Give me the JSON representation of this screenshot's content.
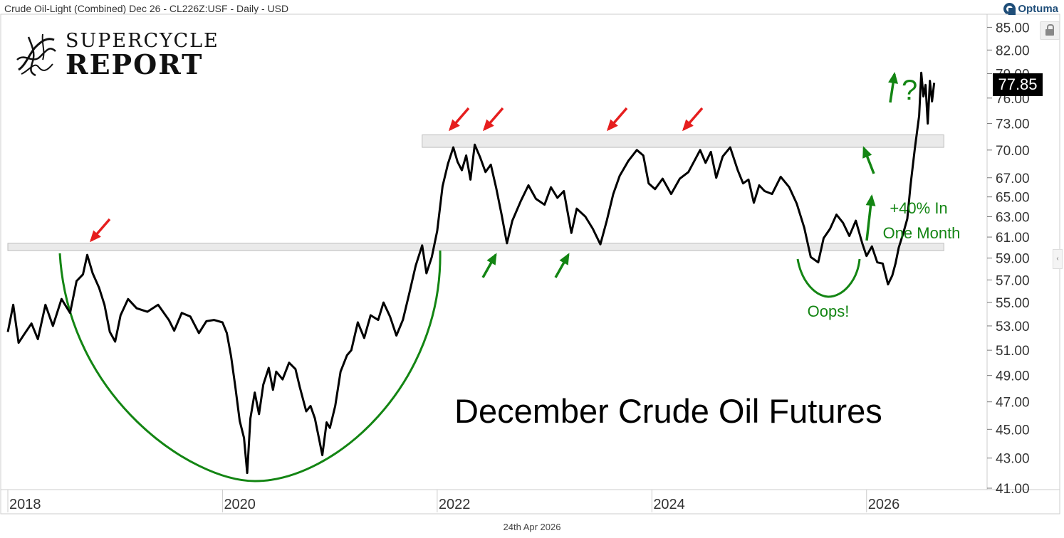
{
  "header": {
    "instrument": "Crude Oil-Light (Combined) Dec 26 - CL226Z:USF - Daily - USD",
    "brand": "Optuma",
    "lock_icon": "lock-icon",
    "scroll_icon": "chevron-left-icon"
  },
  "logo": {
    "line1": "SUPERCYCLE",
    "line2": "REPORT",
    "icon": "swirl-logo-icon"
  },
  "footer": {
    "date": "24th Apr 2026"
  },
  "price_tag": "77.85",
  "chart_data": {
    "type": "line",
    "title": "December Crude Oil Futures",
    "xlabel": "",
    "ylabel": "",
    "ylim": [
      41,
      86
    ],
    "xlim": [
      2017.98,
      2027.05
    ],
    "x_ticks": [
      2018,
      2020,
      2022,
      2024,
      2026
    ],
    "x_tick_labels": [
      "2018",
      "2020",
      "2022",
      "2024",
      "2026"
    ],
    "y_ticks": [
      41,
      43,
      45,
      47,
      49,
      51,
      53,
      55,
      57,
      59,
      61,
      63,
      65,
      67,
      70,
      73,
      76,
      79,
      82,
      85
    ],
    "y_tick_labels": [
      "41.00",
      "43.00",
      "45.00",
      "47.00",
      "49.00",
      "51.00",
      "53.00",
      "55.00",
      "57.00",
      "59.00",
      "61.00",
      "63.00",
      "65.00",
      "67.00",
      "70.00",
      "73.00",
      "76.00",
      "79.00",
      "82.00",
      "85.00"
    ],
    "grid": false,
    "series": [
      {
        "color": "#000000",
        "points": [
          [
            2018.0,
            52.5
          ],
          [
            2018.05,
            54.8
          ],
          [
            2018.1,
            51.6
          ],
          [
            2018.16,
            52.4
          ],
          [
            2018.22,
            53.2
          ],
          [
            2018.28,
            51.9
          ],
          [
            2018.35,
            54.8
          ],
          [
            2018.42,
            53.0
          ],
          [
            2018.5,
            55.3
          ],
          [
            2018.58,
            54.1
          ],
          [
            2018.64,
            56.9
          ],
          [
            2018.7,
            57.5
          ],
          [
            2018.74,
            59.3
          ],
          [
            2018.79,
            57.6
          ],
          [
            2018.85,
            56.3
          ],
          [
            2018.9,
            54.8
          ],
          [
            2018.95,
            52.5
          ],
          [
            2019.0,
            51.7
          ],
          [
            2019.05,
            53.9
          ],
          [
            2019.12,
            55.3
          ],
          [
            2019.2,
            54.5
          ],
          [
            2019.3,
            54.2
          ],
          [
            2019.4,
            54.8
          ],
          [
            2019.5,
            53.5
          ],
          [
            2019.55,
            52.6
          ],
          [
            2019.62,
            54.1
          ],
          [
            2019.7,
            53.8
          ],
          [
            2019.78,
            52.4
          ],
          [
            2019.85,
            53.4
          ],
          [
            2019.92,
            53.5
          ],
          [
            2020.0,
            53.3
          ],
          [
            2020.04,
            52.4
          ],
          [
            2020.08,
            50.5
          ],
          [
            2020.12,
            48.1
          ],
          [
            2020.16,
            45.6
          ],
          [
            2020.2,
            44.4
          ],
          [
            2020.23,
            42.0
          ],
          [
            2020.26,
            45.8
          ],
          [
            2020.3,
            47.7
          ],
          [
            2020.34,
            46.1
          ],
          [
            2020.38,
            48.3
          ],
          [
            2020.43,
            49.6
          ],
          [
            2020.47,
            47.9
          ],
          [
            2020.5,
            49.3
          ],
          [
            2020.56,
            48.7
          ],
          [
            2020.62,
            50.0
          ],
          [
            2020.68,
            49.5
          ],
          [
            2020.72,
            48.1
          ],
          [
            2020.78,
            46.3
          ],
          [
            2020.82,
            46.7
          ],
          [
            2020.86,
            45.8
          ],
          [
            2020.9,
            44.3
          ],
          [
            2020.93,
            43.2
          ],
          [
            2020.97,
            45.5
          ],
          [
            2021.0,
            45.1
          ],
          [
            2021.05,
            46.7
          ],
          [
            2021.1,
            49.3
          ],
          [
            2021.16,
            50.6
          ],
          [
            2021.2,
            51.0
          ],
          [
            2021.26,
            53.3
          ],
          [
            2021.32,
            52.0
          ],
          [
            2021.38,
            53.9
          ],
          [
            2021.45,
            53.5
          ],
          [
            2021.5,
            55.0
          ],
          [
            2021.56,
            53.8
          ],
          [
            2021.62,
            52.2
          ],
          [
            2021.68,
            53.5
          ],
          [
            2021.74,
            55.8
          ],
          [
            2021.8,
            58.3
          ],
          [
            2021.86,
            60.2
          ],
          [
            2021.9,
            57.6
          ],
          [
            2021.95,
            59.1
          ],
          [
            2022.0,
            61.6
          ],
          [
            2022.05,
            66.1
          ],
          [
            2022.1,
            68.5
          ],
          [
            2022.15,
            70.3
          ],
          [
            2022.19,
            68.7
          ],
          [
            2022.23,
            67.8
          ],
          [
            2022.27,
            69.4
          ],
          [
            2022.31,
            66.8
          ],
          [
            2022.35,
            70.6
          ],
          [
            2022.4,
            69.2
          ],
          [
            2022.45,
            67.6
          ],
          [
            2022.5,
            68.4
          ],
          [
            2022.55,
            65.9
          ],
          [
            2022.6,
            63.2
          ],
          [
            2022.65,
            60.4
          ],
          [
            2022.7,
            62.6
          ],
          [
            2022.78,
            64.6
          ],
          [
            2022.85,
            66.2
          ],
          [
            2022.92,
            64.8
          ],
          [
            2023.0,
            64.2
          ],
          [
            2023.06,
            66.0
          ],
          [
            2023.12,
            64.9
          ],
          [
            2023.18,
            65.6
          ],
          [
            2023.25,
            61.4
          ],
          [
            2023.3,
            63.8
          ],
          [
            2023.38,
            63.0
          ],
          [
            2023.45,
            61.8
          ],
          [
            2023.52,
            60.3
          ],
          [
            2023.58,
            62.6
          ],
          [
            2023.64,
            65.3
          ],
          [
            2023.7,
            67.2
          ],
          [
            2023.78,
            68.8
          ],
          [
            2023.86,
            70.0
          ],
          [
            2023.92,
            69.4
          ],
          [
            2023.97,
            66.4
          ],
          [
            2024.03,
            65.8
          ],
          [
            2024.1,
            66.9
          ],
          [
            2024.18,
            65.3
          ],
          [
            2024.26,
            66.9
          ],
          [
            2024.34,
            67.6
          ],
          [
            2024.4,
            68.9
          ],
          [
            2024.45,
            70.0
          ],
          [
            2024.5,
            68.6
          ],
          [
            2024.55,
            69.8
          ],
          [
            2024.6,
            67.0
          ],
          [
            2024.66,
            69.3
          ],
          [
            2024.73,
            70.3
          ],
          [
            2024.8,
            67.8
          ],
          [
            2024.85,
            66.4
          ],
          [
            2024.9,
            66.8
          ],
          [
            2024.95,
            64.4
          ],
          [
            2025.0,
            66.2
          ],
          [
            2025.05,
            65.6
          ],
          [
            2025.12,
            65.3
          ],
          [
            2025.2,
            67.1
          ],
          [
            2025.28,
            66.0
          ],
          [
            2025.35,
            64.3
          ],
          [
            2025.42,
            61.9
          ],
          [
            2025.48,
            59.1
          ],
          [
            2025.55,
            58.6
          ],
          [
            2025.6,
            60.9
          ],
          [
            2025.66,
            61.8
          ],
          [
            2025.72,
            63.2
          ],
          [
            2025.78,
            62.4
          ],
          [
            2025.84,
            61.1
          ],
          [
            2025.9,
            62.6
          ],
          [
            2025.96,
            60.4
          ],
          [
            2026.0,
            59.2
          ],
          [
            2026.05,
            60.1
          ],
          [
            2026.1,
            58.6
          ],
          [
            2026.15,
            58.5
          ],
          [
            2026.2,
            56.6
          ],
          [
            2026.24,
            57.4
          ],
          [
            2026.27,
            58.5
          ],
          [
            2026.3,
            60.0
          ],
          [
            2026.34,
            61.3
          ],
          [
            2026.38,
            62.8
          ],
          [
            2026.41,
            66.2
          ],
          [
            2026.45,
            70.2
          ],
          [
            2026.49,
            73.9
          ],
          [
            2026.51,
            79.1
          ],
          [
            2026.53,
            76.2
          ],
          [
            2026.55,
            77.6
          ],
          [
            2026.57,
            73.0
          ],
          [
            2026.59,
            78.1
          ],
          [
            2026.61,
            75.6
          ],
          [
            2026.63,
            77.85
          ]
        ]
      }
    ],
    "resistance_band": {
      "y": [
        70.3,
        71.7
      ],
      "x": [
        2021.86,
        2026.72
      ]
    },
    "support_band": {
      "y": [
        59.7,
        60.4
      ],
      "x": [
        2018.0,
        2026.72
      ]
    },
    "annotations": {
      "one_month": [
        "+40% In",
        "One Month"
      ],
      "oops": "Oops!",
      "question": "?"
    },
    "colors": {
      "price": "#000000",
      "arc": "#138513",
      "red_arrow": "#e61e1e",
      "green_arrow": "#138513",
      "band": "#e6e6e6"
    }
  }
}
